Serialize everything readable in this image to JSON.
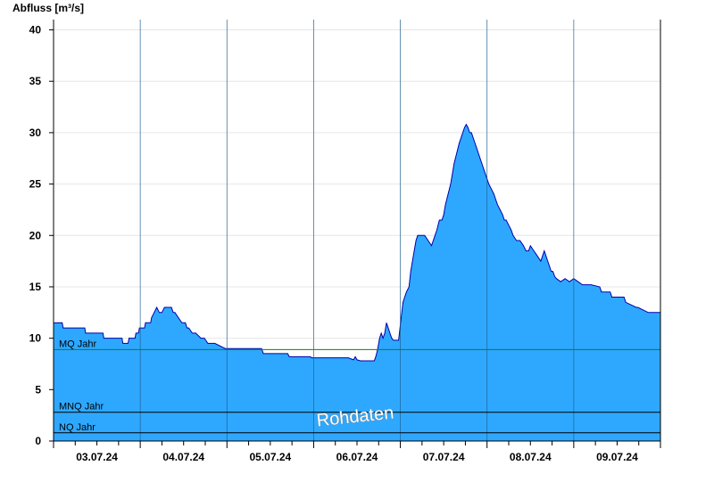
{
  "chart_data": {
    "type": "area",
    "ylabel": "Abfluss [m³/s]",
    "ylim": [
      0,
      41
    ],
    "yticks": [
      0,
      5,
      10,
      15,
      20,
      25,
      30,
      35,
      40
    ],
    "ytick_labels": [
      "0",
      "5",
      "10",
      "15",
      "20",
      "25",
      "30",
      "35",
      "40"
    ],
    "xlim": [
      0,
      7
    ],
    "x_unit": "days from 03.07.24 00:00",
    "day_boundaries": [
      0,
      1,
      2,
      3,
      4,
      5,
      6,
      7
    ],
    "day_labels": [
      "03.07.24",
      "04.07.24",
      "05.07.24",
      "06.07.24",
      "07.07.24",
      "08.07.24",
      "09.07.24"
    ],
    "watermark": "Rohdaten",
    "fill_color": "#2ea8ff",
    "line_color": "#0000aa",
    "reference_lines": [
      {
        "label": "MQ Jahr",
        "value": 8.9,
        "color": "#1a7a1a"
      },
      {
        "label": "MNQ Jahr",
        "value": 2.8,
        "color": "#000000"
      },
      {
        "label": "NQ Jahr",
        "value": 0.8,
        "color": "#000000"
      }
    ],
    "series": [
      {
        "x": [
          0,
          0.1,
          0.11,
          0.36,
          0.37,
          0.57,
          0.58,
          0.79,
          0.8,
          0.86,
          0.87,
          0.94,
          0.95,
          0.98,
          0.99,
          1.05,
          1.06,
          1.12,
          1.13,
          1.16,
          1.19,
          1.22,
          1.25,
          1.28,
          1.3,
          1.33,
          1.36,
          1.38,
          1.4,
          1.44,
          1.48,
          1.52,
          1.54,
          1.56,
          1.6,
          1.64,
          1.7,
          1.74,
          1.78,
          1.86,
          1.98,
          2.1,
          2.4,
          2.42,
          2.7,
          2.72,
          2.96,
          2.98,
          3.2,
          3.4,
          3.46,
          3.48,
          3.5,
          3.54,
          3.7,
          3.72,
          3.74,
          3.76,
          3.78,
          3.8,
          3.82,
          3.84,
          3.86,
          3.88,
          3.9,
          3.92,
          3.94,
          3.96,
          3.98,
          4.03,
          4.05,
          4.07,
          4.1,
          4.12,
          4.15,
          4.18,
          4.2,
          4.22,
          4.25,
          4.28,
          4.32,
          4.36,
          4.4,
          4.42,
          4.45,
          4.48,
          4.5,
          4.52,
          4.55,
          4.58,
          4.6,
          4.62,
          4.65,
          4.68,
          4.7,
          4.72,
          4.74,
          4.76,
          4.78,
          4.8,
          4.82,
          4.86,
          4.88,
          4.9,
          4.92,
          4.94,
          4.96,
          4.98,
          5.0,
          5.02,
          5.05,
          5.08,
          5.1,
          5.12,
          5.15,
          5.18,
          5.2,
          5.22,
          5.25,
          5.28,
          5.3,
          5.34,
          5.38,
          5.42,
          5.45,
          5.48,
          5.5,
          5.54,
          5.58,
          5.62,
          5.64,
          5.66,
          5.68,
          5.7,
          5.72,
          5.74,
          5.76,
          5.78,
          5.8,
          5.85,
          5.9,
          5.95,
          6.0,
          6.05,
          6.1,
          6.2,
          6.3,
          6.32,
          6.42,
          6.44,
          6.58,
          6.6,
          6.72,
          6.74,
          6.86,
          6.88,
          7.0
        ],
        "y": [
          11.5,
          11.5,
          11.0,
          11.0,
          10.5,
          10.5,
          10.0,
          10.0,
          9.5,
          9.5,
          10.0,
          10.0,
          10.5,
          10.5,
          11.0,
          11.0,
          11.5,
          11.5,
          12.0,
          12.5,
          13.0,
          12.5,
          12.5,
          13.0,
          13.0,
          13.0,
          13.0,
          12.5,
          12.5,
          12.0,
          11.5,
          11.5,
          11.0,
          11.0,
          10.5,
          10.5,
          10.0,
          10.0,
          9.5,
          9.5,
          9.0,
          9.0,
          9.0,
          8.5,
          8.5,
          8.2,
          8.2,
          8.1,
          8.1,
          8.1,
          7.9,
          8.2,
          7.9,
          7.8,
          7.8,
          8.3,
          9.0,
          10.0,
          10.5,
          10.0,
          10.5,
          11.5,
          11.0,
          10.5,
          10.0,
          9.8,
          9.8,
          9.8,
          9.8,
          13.5,
          14.0,
          14.5,
          15.0,
          16.5,
          18.0,
          19.5,
          20.0,
          20.0,
          20.0,
          20.0,
          19.5,
          19.0,
          20.0,
          20.5,
          21.5,
          21.5,
          22.0,
          23.0,
          24.0,
          25.0,
          26.0,
          27.0,
          28.0,
          29.0,
          29.5,
          30.0,
          30.5,
          30.8,
          30.5,
          30.0,
          30.0,
          29.0,
          28.5,
          28.0,
          27.5,
          27.0,
          26.5,
          26.0,
          25.5,
          25.0,
          24.5,
          24.0,
          23.5,
          23.0,
          22.5,
          22.0,
          21.5,
          21.5,
          21.0,
          20.5,
          20.0,
          19.5,
          19.5,
          19.0,
          18.5,
          18.5,
          19.0,
          18.5,
          18.0,
          17.5,
          18.0,
          18.5,
          18.0,
          17.5,
          17.0,
          16.5,
          16.5,
          16.0,
          15.8,
          15.5,
          15.8,
          15.5,
          15.8,
          15.5,
          15.2,
          15.2,
          15.0,
          14.5,
          14.5,
          14.0,
          14.0,
          13.5,
          13.0,
          13.0,
          12.5,
          12.5,
          12.5
        ]
      }
    ]
  }
}
